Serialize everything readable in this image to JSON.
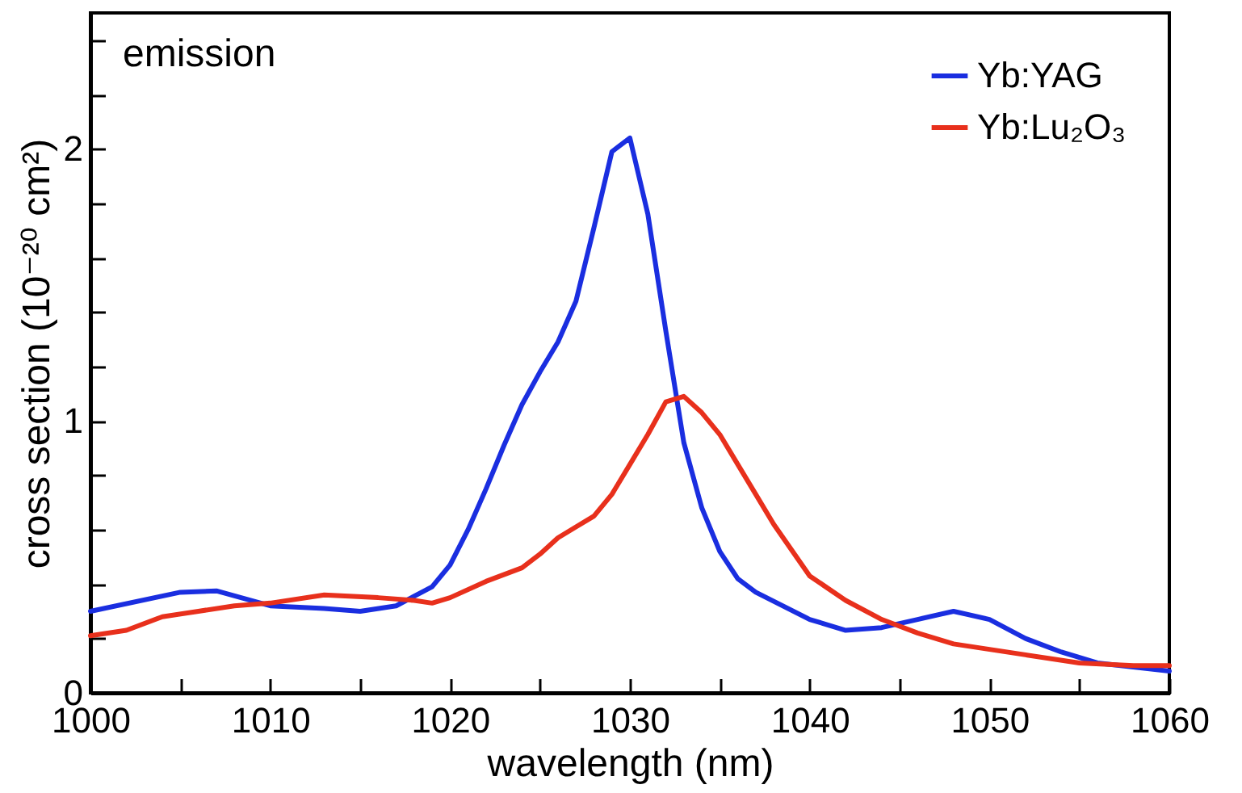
{
  "chart_data": {
    "type": "line",
    "xlabel": "wavelength (nm)",
    "ylabel": "cross section (10⁻²⁰ cm²)",
    "annotations": [
      "emission"
    ],
    "xlim": [
      1000,
      1060
    ],
    "xticks": [
      1000,
      {
        "value": 1005,
        "label": null
      },
      1010,
      {
        "value": 1015,
        "label": null
      },
      1020,
      {
        "value": 1025,
        "label": null
      },
      1030,
      {
        "value": 1035,
        "label": null
      },
      1040,
      {
        "value": 1045,
        "label": null
      },
      1050,
      {
        "value": 1055,
        "label": null
      },
      1060
    ],
    "ylim": [
      0,
      2.5
    ],
    "yticks": [
      0,
      {
        "value": 0.2,
        "label": null
      },
      {
        "value": 0.4,
        "label": null
      },
      {
        "value": 0.6,
        "label": null
      },
      {
        "value": 0.8,
        "label": null
      },
      1,
      {
        "value": 1.2,
        "label": null
      },
      {
        "value": 1.4,
        "label": null
      },
      {
        "value": 1.6,
        "label": null
      },
      {
        "value": 1.8,
        "label": null
      },
      2,
      {
        "value": 2.2,
        "label": null
      },
      {
        "value": 2.4,
        "label": null
      }
    ],
    "grid": false,
    "legend": "top right",
    "line_style": "solid",
    "marker": "none",
    "series": [
      {
        "name": "Yb:YAG",
        "color": "#1a2ee0",
        "x": [
          1000,
          1005,
          1007,
          1010,
          1013,
          1015,
          1017,
          1019,
          1020,
          1021,
          1022,
          1023,
          1024,
          1025,
          1026,
          1027,
          1028,
          1029,
          1030,
          1031,
          1032,
          1033,
          1034,
          1035,
          1036,
          1037,
          1040,
          1042,
          1044,
          1046,
          1048,
          1050,
          1052,
          1054,
          1056,
          1058,
          1060
        ],
        "values": [
          0.3,
          0.37,
          0.375,
          0.32,
          0.31,
          0.3,
          0.32,
          0.39,
          0.47,
          0.6,
          0.75,
          0.91,
          1.06,
          1.18,
          1.29,
          1.44,
          1.71,
          1.99,
          2.04,
          1.76,
          1.33,
          0.92,
          0.68,
          0.52,
          0.42,
          0.37,
          0.27,
          0.23,
          0.24,
          0.27,
          0.3,
          0.27,
          0.2,
          0.15,
          0.11,
          0.095,
          0.08
        ]
      },
      {
        "name": "Yb:Lu₂O₃",
        "color": "#e8301c",
        "x": [
          1000,
          1002,
          1004,
          1006,
          1008,
          1010,
          1013,
          1016,
          1018,
          1019,
          1020,
          1022,
          1024,
          1025,
          1026,
          1027,
          1028,
          1029,
          1030,
          1031,
          1032,
          1033,
          1034,
          1035,
          1036,
          1037,
          1038,
          1040,
          1042,
          1044,
          1046,
          1048,
          1050,
          1052,
          1055,
          1058,
          1060
        ],
        "values": [
          0.21,
          0.23,
          0.28,
          0.3,
          0.32,
          0.33,
          0.36,
          0.35,
          0.34,
          0.33,
          0.35,
          0.41,
          0.46,
          0.51,
          0.57,
          0.61,
          0.65,
          0.73,
          0.84,
          0.95,
          1.07,
          1.09,
          1.03,
          0.95,
          0.84,
          0.73,
          0.62,
          0.43,
          0.34,
          0.27,
          0.22,
          0.18,
          0.16,
          0.14,
          0.11,
          0.1,
          0.1
        ]
      }
    ]
  }
}
